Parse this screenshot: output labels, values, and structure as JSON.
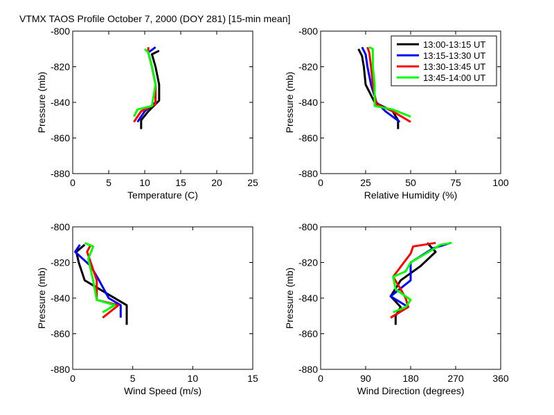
{
  "title": "VTMX TAOS Profile   October 7, 2000 (DOY 281) [15-min mean]",
  "colors": {
    "series": [
      "#000000",
      "#0000ff",
      "#ff0000",
      "#00ff00"
    ],
    "axis": "#000000",
    "background": "#ffffff"
  },
  "legend": {
    "placement": "top-right of relative humidity panel",
    "labels": [
      "13:00-13:15 UT",
      "13:15-13:30 UT",
      "13:30-13:45 UT",
      "13:45-14:00 UT"
    ]
  },
  "chart_data": [
    {
      "type": "line",
      "id": "temperature",
      "xlabel": "Temperature (C)",
      "ylabel": "Pressure (mb)",
      "xlim": [
        0,
        25
      ],
      "ylim": [
        -880,
        -800
      ],
      "xticks": [
        0,
        5,
        10,
        15,
        20,
        25
      ],
      "yticks": [
        -880,
        -860,
        -840,
        -820,
        -800
      ],
      "series": [
        {
          "name": "13:00-13:15 UT",
          "x": [
            12.0,
            11.0,
            11.5,
            12.0,
            12.0,
            10.5,
            9.5,
            9.5
          ],
          "y": [
            -811,
            -813,
            -820,
            -830,
            -839,
            -845,
            -850,
            -855
          ]
        },
        {
          "name": "13:15-13:30 UT",
          "x": [
            11.5,
            10.5,
            11.0,
            11.5,
            11.5,
            10.0,
            9.0
          ],
          "y": [
            -809,
            -812,
            -820,
            -830,
            -840,
            -845,
            -851
          ]
        },
        {
          "name": "13:30-13:45 UT",
          "x": [
            10.5,
            10.5,
            11.0,
            11.5,
            11.5,
            9.5,
            8.5
          ],
          "y": [
            -809,
            -812,
            -820,
            -830,
            -841,
            -845,
            -851
          ]
        },
        {
          "name": "13:45-14:00 UT",
          "x": [
            10.0,
            10.5,
            11.0,
            11.5,
            11.0,
            9.0,
            8.5
          ],
          "y": [
            -810,
            -812,
            -820,
            -830,
            -842,
            -844,
            -848
          ]
        }
      ]
    },
    {
      "type": "line",
      "id": "humidity",
      "xlabel": "Relative Humidity (%)",
      "ylabel": "Pressure (mb)",
      "xlim": [
        0,
        100
      ],
      "ylim": [
        -880,
        -800
      ],
      "xticks": [
        0,
        25,
        50,
        75,
        100
      ],
      "yticks": [
        -880,
        -860,
        -840,
        -820,
        -800
      ],
      "series": [
        {
          "name": "13:00-13:15 UT",
          "x": [
            21,
            23,
            24,
            25,
            30,
            40,
            43,
            43
          ],
          "y": [
            -810,
            -814,
            -820,
            -830,
            -840,
            -845,
            -850,
            -855
          ]
        },
        {
          "name": "13:15-13:30 UT",
          "x": [
            23,
            25,
            26,
            28,
            31,
            36,
            44
          ],
          "y": [
            -809,
            -813,
            -820,
            -830,
            -840,
            -845,
            -851
          ]
        },
        {
          "name": "13:30-13:45 UT",
          "x": [
            26,
            27,
            28,
            29,
            31,
            40,
            50
          ],
          "y": [
            -809,
            -812,
            -820,
            -830,
            -841,
            -845,
            -851
          ]
        },
        {
          "name": "13:45-14:00 UT",
          "x": [
            27,
            29,
            29,
            30,
            30,
            40,
            50
          ],
          "y": [
            -809,
            -810,
            -820,
            -830,
            -842,
            -844,
            -848
          ]
        }
      ]
    },
    {
      "type": "line",
      "id": "windspeed",
      "xlabel": "Wind Speed (m/s)",
      "ylabel": "Pressure (mb)",
      "xlim": [
        0,
        15
      ],
      "ylim": [
        -880,
        -800
      ],
      "xticks": [
        0,
        5,
        10,
        15
      ],
      "yticks": [
        -880,
        -860,
        -840,
        -820,
        -800
      ],
      "series": [
        {
          "name": "13:00-13:15 UT",
          "x": [
            1.0,
            0.3,
            0.5,
            1.0,
            3.0,
            4.5,
            4.5,
            4.5
          ],
          "y": [
            -810,
            -814,
            -820,
            -830,
            -838,
            -844,
            -850,
            -855
          ]
        },
        {
          "name": "13:15-13:30 UT",
          "x": [
            0.6,
            0.2,
            1.5,
            2.2,
            3.0,
            4.0,
            4.0
          ],
          "y": [
            -810,
            -814,
            -822,
            -830,
            -840,
            -844,
            -851
          ]
        },
        {
          "name": "13:30-13:45 UT",
          "x": [
            1.5,
            1.2,
            1.5,
            2.0,
            2.0,
            3.8,
            2.5
          ],
          "y": [
            -810,
            -814,
            -820,
            -830,
            -841,
            -844,
            -851
          ]
        },
        {
          "name": "13:45-14:00 UT",
          "x": [
            1.0,
            1.7,
            1.3,
            1.7,
            2.0,
            3.5,
            2.5
          ],
          "y": [
            -809,
            -811,
            -818,
            -830,
            -841,
            -844,
            -848
          ]
        }
      ]
    },
    {
      "type": "line",
      "id": "winddirection",
      "xlabel": "Wind Direction (degrees)",
      "ylabel": "Pressure (mb)",
      "xlim": [
        0,
        360
      ],
      "ylim": [
        -880,
        -800
      ],
      "xticks": [
        0,
        90,
        180,
        270,
        360
      ],
      "yticks": [
        -880,
        -860,
        -840,
        -820,
        -800
      ],
      "series": [
        {
          "name": "13:00-13:15 UT",
          "x": [
            213,
            230,
            200,
            160,
            140,
            160,
            150,
            150
          ],
          "y": [
            -809,
            -814,
            -822,
            -830,
            -839,
            -845,
            -850,
            -855
          ]
        },
        {
          "name": "13:15-13:30 UT",
          "x": [
            260,
            225,
            180,
            180,
            140,
            175,
            140
          ],
          "y": [
            -809,
            -812,
            -820,
            -830,
            -839,
            -845,
            -851
          ]
        },
        {
          "name": "13:30-13:45 UT",
          "x": [
            230,
            185,
            180,
            145,
            160,
            170,
            175,
            140
          ],
          "y": [
            -809,
            -811,
            -815,
            -828,
            -835,
            -840,
            -845,
            -851
          ]
        },
        {
          "name": "13:45-14:00 UT",
          "x": [
            262,
            240,
            180,
            170,
            145,
            150,
            180,
            170,
            145
          ],
          "y": [
            -809,
            -810,
            -820,
            -825,
            -828,
            -835,
            -841,
            -845,
            -848
          ]
        }
      ]
    }
  ]
}
